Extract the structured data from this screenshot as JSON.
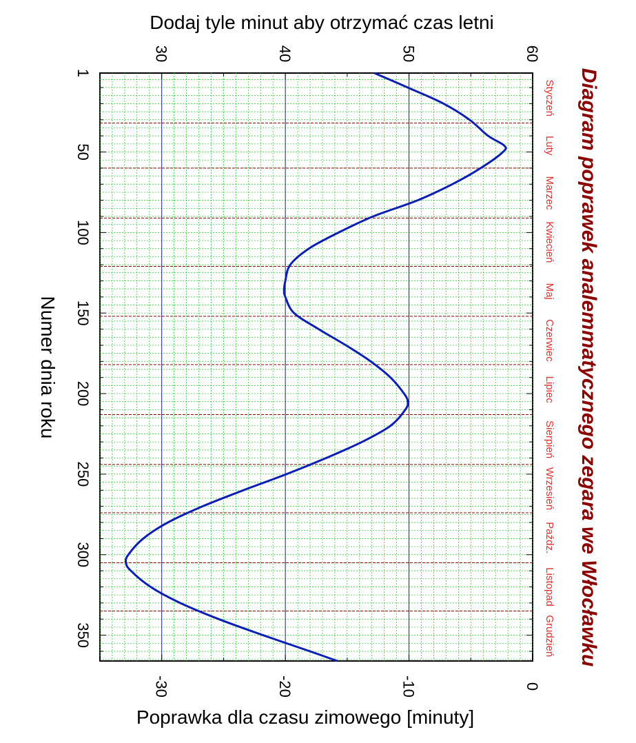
{
  "chart_data": {
    "type": "line",
    "title": "Diagram poprawek analemmatycznego zegara we Włocławku",
    "xlabel": "Numer dnia roku",
    "ylabel": "Poprawka dla czasu zimowego  [minuty]",
    "ylabel_top": "Dodaj tyle minut aby otrzymać czas letni",
    "xlim": [
      1,
      366
    ],
    "ylim": [
      -35,
      0
    ],
    "ylim_top": [
      25,
      60
    ],
    "x_ticks": [
      "1",
      "50",
      "100",
      "150",
      "200",
      "250",
      "300",
      "350"
    ],
    "y_ticks": [
      "-30",
      "-20",
      "-10",
      "0"
    ],
    "y_ticks_top": [
      "30",
      "40",
      "50",
      "60"
    ],
    "months": [
      "Styczeń",
      "Luty",
      "Marzec",
      "Kwiecień",
      "Maj",
      "Czerwiec",
      "Lipiec",
      "Sierpień",
      "Wrzesień",
      "Paźdz.",
      "Listopad",
      "Grudzień"
    ],
    "month_starts": [
      32,
      60,
      91,
      121,
      152,
      182,
      213,
      244,
      274,
      305,
      335
    ],
    "grid": true,
    "series": [
      {
        "color": "#0b1fb0",
        "x": [
          1,
          10,
          20,
          30,
          40,
          46,
          50,
          60,
          70,
          80,
          90,
          100,
          110,
          120,
          130,
          136,
          140,
          150,
          160,
          170,
          180,
          190,
          200,
          205,
          210,
          220,
          230,
          240,
          250,
          260,
          270,
          280,
          290,
          300,
          305,
          310,
          320,
          330,
          340,
          350,
          360,
          366
        ],
        "y": [
          -12.8,
          -10.1,
          -7.2,
          -5.1,
          -3.6,
          -2.3,
          -2.4,
          -4.2,
          -6.5,
          -9.3,
          -12.9,
          -15.7,
          -18.1,
          -19.6,
          -20.0,
          -20.1,
          -20.0,
          -19.3,
          -17.3,
          -15.1,
          -13.1,
          -11.5,
          -10.4,
          -10.1,
          -10.3,
          -11.5,
          -13.8,
          -16.7,
          -19.9,
          -23.4,
          -26.7,
          -29.5,
          -31.5,
          -32.7,
          -32.9,
          -32.5,
          -30.9,
          -28.5,
          -25.4,
          -21.8,
          -18.0,
          -15.8
        ]
      }
    ]
  }
}
